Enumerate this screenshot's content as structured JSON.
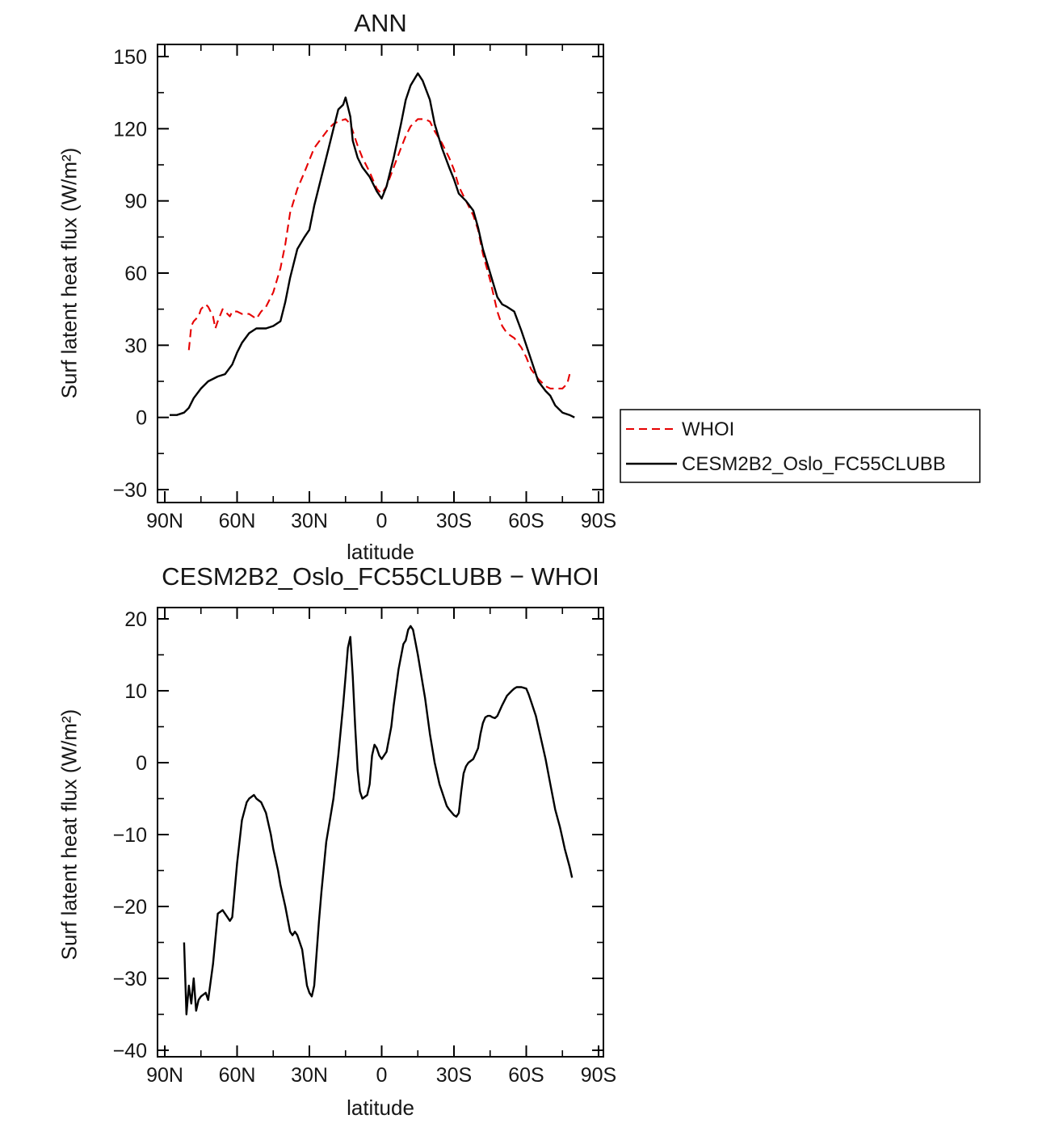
{
  "page": {
    "background": "#ffffff"
  },
  "chart_data": [
    {
      "type": "line",
      "title": "ANN",
      "xlabel": "latitude",
      "ylabel": "Surf latent heat flux (W/m²)",
      "xlim": [
        90,
        -90
      ],
      "ylim": [
        -30,
        150
      ],
      "ytick_values": [
        150,
        120,
        90,
        60,
        30,
        0,
        -30
      ],
      "ytick_labels": [
        "150",
        "120",
        "90",
        "60",
        "30",
        "0",
        "−30"
      ],
      "xtick_values": [
        90,
        60,
        30,
        0,
        -30,
        -60,
        -90
      ],
      "xtick_labels": [
        "90N",
        "60N",
        "30N",
        "0",
        "30S",
        "60S",
        "90S"
      ],
      "x_minor_step": 15,
      "y_minor_step": 15,
      "grid": false,
      "legend": {
        "position": "outside-right",
        "entries": [
          "WHOI",
          "CESM2B2_Oslo_FC55CLUBB"
        ]
      },
      "series": [
        {
          "name": "WHOI",
          "color": "#e60000",
          "style": "dashed",
          "x": [
            80,
            79,
            78,
            76,
            75,
            73,
            72,
            70,
            69,
            68,
            66,
            65,
            63,
            62,
            60,
            58,
            55,
            52,
            50,
            48,
            45,
            42,
            40,
            38,
            35,
            32,
            30,
            28,
            25,
            22,
            20,
            18,
            15,
            13,
            12,
            10,
            8,
            5,
            2,
            0,
            -2,
            -5,
            -8,
            -10,
            -12,
            -15,
            -18,
            -20,
            -22,
            -25,
            -28,
            -30,
            -32,
            -35,
            -38,
            -40,
            -42,
            -45,
            -48,
            -50,
            -52,
            -55,
            -58,
            -60,
            -62,
            -65,
            -68,
            -70,
            -72,
            -75,
            -77,
            -78
          ],
          "y": [
            28,
            38,
            40,
            42,
            45,
            47,
            46,
            42,
            37,
            40,
            45,
            44,
            42,
            44,
            44,
            43,
            43,
            41,
            44,
            46,
            52,
            62,
            72,
            85,
            95,
            102,
            107,
            112,
            116,
            120,
            122,
            123,
            124,
            122,
            119,
            113,
            108,
            102,
            95,
            93,
            96,
            104,
            112,
            117,
            121,
            124,
            124,
            123,
            119,
            114,
            108,
            103,
            96,
            90,
            84,
            78,
            68,
            57,
            44,
            38,
            35,
            33,
            29,
            25,
            20,
            16,
            13,
            12,
            12,
            12,
            14,
            18
          ]
        },
        {
          "name": "CESM2B2_Oslo_FC55CLUBB",
          "color": "#000000",
          "style": "solid",
          "x": [
            88,
            85,
            82,
            80,
            78,
            75,
            72,
            70,
            68,
            65,
            62,
            60,
            58,
            55,
            52,
            50,
            48,
            45,
            42,
            40,
            38,
            35,
            32,
            30,
            28,
            25,
            22,
            20,
            18,
            16,
            15,
            13,
            12,
            10,
            8,
            5,
            2,
            0,
            -2,
            -5,
            -8,
            -10,
            -12,
            -15,
            -17,
            -20,
            -22,
            -25,
            -28,
            -30,
            -32,
            -35,
            -38,
            -40,
            -42,
            -45,
            -48,
            -50,
            -52,
            -55,
            -58,
            -60,
            -62,
            -65,
            -68,
            -70,
            -72,
            -75,
            -78,
            -80
          ],
          "y": [
            1,
            1,
            2,
            4,
            8,
            12,
            15,
            16,
            17,
            18,
            22,
            27,
            31,
            35,
            37,
            37,
            37,
            38,
            40,
            48,
            58,
            70,
            75,
            78,
            88,
            100,
            112,
            120,
            128,
            130,
            133,
            125,
            115,
            108,
            104,
            100,
            94,
            91,
            96,
            108,
            122,
            132,
            138,
            143,
            140,
            132,
            122,
            112,
            104,
            99,
            93,
            90,
            86,
            79,
            70,
            60,
            50,
            47,
            46,
            44,
            36,
            30,
            24,
            15,
            11,
            9,
            5,
            2,
            1,
            0
          ]
        }
      ]
    },
    {
      "type": "line",
      "title": "CESM2B2_Oslo_FC55CLUBB − WHOI",
      "xlabel": "latitude",
      "ylabel": "Surf latent heat flux (W/m²)",
      "xlim": [
        90,
        -90
      ],
      "ylim": [
        -40,
        20
      ],
      "ytick_values": [
        20,
        10,
        0,
        -10,
        -20,
        -30,
        -40
      ],
      "ytick_labels": [
        "20",
        "10",
        "0",
        "−10",
        "−20",
        "−30",
        "−40"
      ],
      "xtick_values": [
        90,
        60,
        30,
        0,
        -30,
        -60,
        -90
      ],
      "xtick_labels": [
        "90N",
        "60N",
        "30N",
        "0",
        "30S",
        "60S",
        "90S"
      ],
      "x_minor_step": 15,
      "y_minor_step": 5,
      "grid": false,
      "series": [
        {
          "name": "CESM2B2_Oslo_FC55CLUBB − WHOI",
          "color": "#000000",
          "style": "solid",
          "x": [
            82,
            81,
            80,
            79,
            78,
            77,
            76,
            75,
            73,
            72,
            70,
            68,
            66,
            65,
            63,
            62,
            60,
            58,
            56,
            55,
            53,
            52,
            50,
            48,
            46,
            45,
            43,
            42,
            40,
            38,
            37,
            36,
            35,
            33,
            31,
            30,
            29,
            28,
            26,
            25,
            23,
            22,
            20,
            18,
            16,
            15,
            14,
            13,
            12,
            11,
            10,
            9,
            8,
            6,
            5,
            4,
            3,
            2,
            1,
            0,
            -2,
            -4,
            -5,
            -7,
            -9,
            -10,
            -11,
            -12,
            -13,
            -15,
            -17,
            -18,
            -20,
            -22,
            -24,
            -25,
            -27,
            -28,
            -30,
            -31,
            -32,
            -33,
            -34,
            -35,
            -36,
            -38,
            -40,
            -41,
            -42,
            -43,
            -44,
            -45,
            -46,
            -47,
            -48,
            -50,
            -52,
            -54,
            -55,
            -56,
            -58,
            -60,
            -61,
            -62,
            -64,
            -65,
            -66,
            -68,
            -70,
            -72,
            -74,
            -75,
            -76,
            -78,
            -79
          ],
          "y": [
            -25,
            -35,
            -31,
            -33.5,
            -30,
            -34.5,
            -33,
            -32.5,
            -32,
            -33,
            -28,
            -21,
            -20.5,
            -21,
            -22,
            -21.5,
            -14,
            -8,
            -5.5,
            -5,
            -4.5,
            -5,
            -5.5,
            -7,
            -10,
            -12,
            -15,
            -17,
            -20,
            -23.5,
            -24,
            -23.5,
            -24,
            -26,
            -31,
            -32,
            -32.5,
            -31,
            -22,
            -18,
            -11,
            -9,
            -5,
            1,
            8,
            12,
            16,
            17.5,
            12,
            5,
            -1,
            -4,
            -5,
            -4.5,
            -3,
            1,
            2.5,
            2,
            1,
            0.5,
            1.5,
            5,
            8,
            13,
            16.5,
            17,
            18.5,
            19,
            18.5,
            15,
            11,
            9,
            4,
            0,
            -3,
            -4,
            -6,
            -6.5,
            -7.3,
            -7.5,
            -7,
            -4,
            -1.5,
            -0.5,
            0,
            0.5,
            2,
            4,
            5.5,
            6.3,
            6.5,
            6.5,
            6.3,
            6.2,
            6.5,
            8,
            9.3,
            10,
            10.3,
            10.5,
            10.5,
            10.3,
            9.5,
            8.5,
            6.5,
            5,
            3.5,
            0.5,
            -3,
            -6.5,
            -9,
            -10.5,
            -12,
            -14.5,
            -16
          ]
        }
      ]
    }
  ]
}
